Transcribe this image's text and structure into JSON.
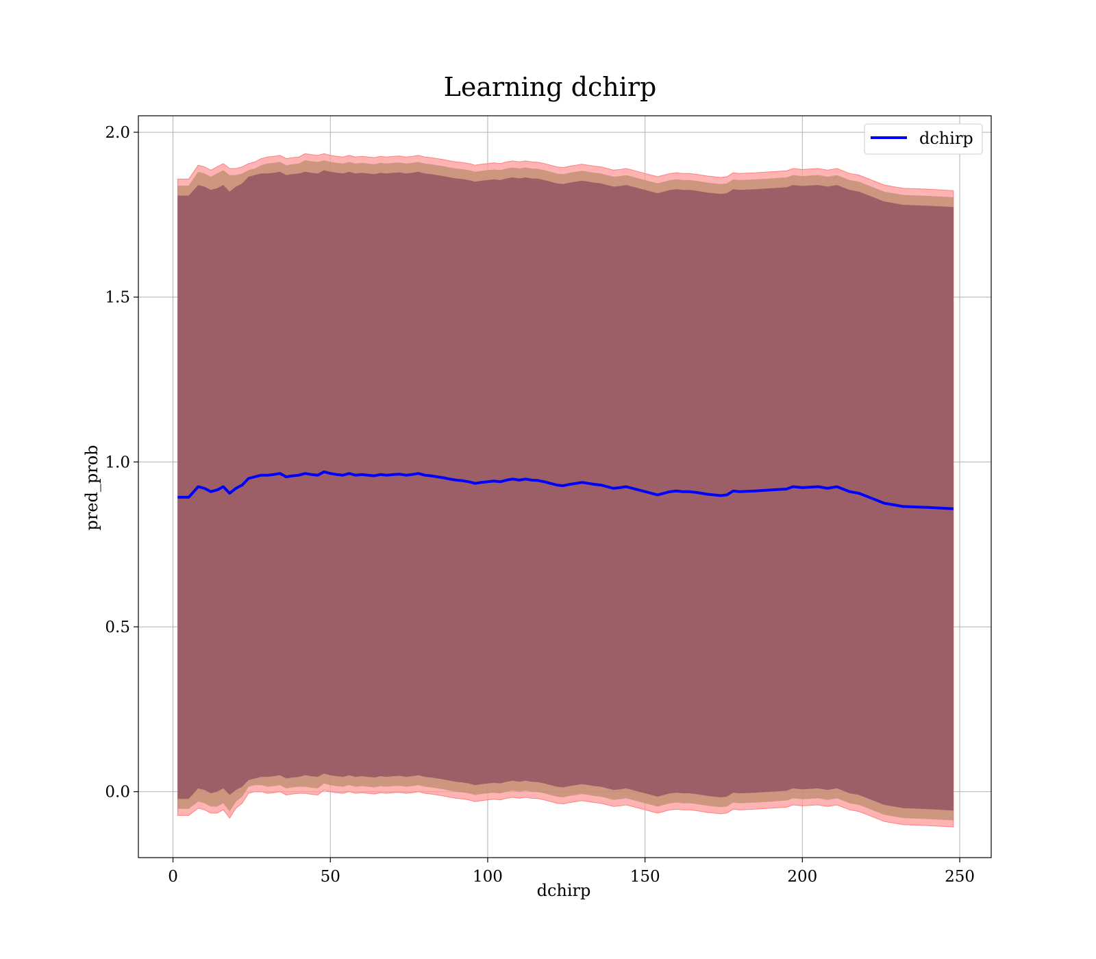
{
  "chart_data": {
    "type": "line",
    "title": "Learning dchirp",
    "xlabel": "dchirp",
    "ylabel": "pred_prob",
    "xlim": [
      -11,
      260
    ],
    "ylim": [
      -0.2,
      2.05
    ],
    "xticks": [
      0,
      50,
      100,
      150,
      200,
      250
    ],
    "yticks": [
      0.0,
      0.5,
      1.0,
      1.5,
      2.0
    ],
    "xtick_labels": [
      "0",
      "50",
      "100",
      "150",
      "200",
      "250"
    ],
    "ytick_labels": [
      "0.0",
      "0.5",
      "1.0",
      "1.5",
      "2.0"
    ],
    "grid": true,
    "legend": {
      "position": "top-right",
      "entries": [
        {
          "label": "dchirp",
          "color": "#0000ff"
        }
      ]
    },
    "colors": {
      "line": "#0000ff",
      "outer_band": "#ff9999",
      "inner_band": "#8b4a5e",
      "grid": "#b0b0b0"
    },
    "series": [
      {
        "name": "dchirp",
        "x": [
          1.5,
          5,
          8,
          10,
          12,
          14,
          16,
          18,
          20,
          22,
          24,
          26,
          28,
          30,
          32,
          34,
          36,
          38,
          40,
          42,
          44,
          46,
          48,
          50,
          52,
          54,
          56,
          58,
          60,
          62,
          64,
          66,
          68,
          70,
          72,
          74,
          76,
          78,
          80,
          82,
          84,
          86,
          88,
          90,
          92,
          94,
          96,
          98,
          100,
          102,
          104,
          106,
          108,
          110,
          112,
          114,
          116,
          118,
          120,
          122,
          124,
          126,
          128,
          130,
          132,
          134,
          136,
          138,
          140,
          142,
          144,
          146,
          148,
          150,
          152,
          154,
          156,
          158,
          160,
          162,
          164,
          166,
          168,
          170,
          172,
          174,
          176,
          178,
          180,
          185,
          190,
          195,
          197,
          200,
          205,
          208,
          211,
          215,
          218,
          222,
          226,
          232,
          240,
          248
        ],
        "y": [
          0.893,
          0.893,
          0.925,
          0.92,
          0.91,
          0.915,
          0.925,
          0.905,
          0.92,
          0.93,
          0.95,
          0.955,
          0.96,
          0.96,
          0.962,
          0.965,
          0.955,
          0.958,
          0.96,
          0.965,
          0.962,
          0.96,
          0.97,
          0.965,
          0.962,
          0.96,
          0.965,
          0.96,
          0.962,
          0.96,
          0.958,
          0.962,
          0.96,
          0.962,
          0.963,
          0.96,
          0.962,
          0.965,
          0.96,
          0.958,
          0.955,
          0.952,
          0.948,
          0.945,
          0.943,
          0.94,
          0.935,
          0.938,
          0.94,
          0.942,
          0.94,
          0.945,
          0.948,
          0.945,
          0.948,
          0.945,
          0.944,
          0.94,
          0.935,
          0.93,
          0.928,
          0.932,
          0.935,
          0.938,
          0.935,
          0.932,
          0.93,
          0.925,
          0.92,
          0.922,
          0.925,
          0.92,
          0.915,
          0.91,
          0.905,
          0.9,
          0.905,
          0.91,
          0.912,
          0.91,
          0.91,
          0.908,
          0.905,
          0.902,
          0.9,
          0.898,
          0.9,
          0.912,
          0.91,
          0.912,
          0.915,
          0.918,
          0.925,
          0.922,
          0.925,
          0.92,
          0.925,
          0.91,
          0.905,
          0.89,
          0.875,
          0.865,
          0.862,
          0.858
        ],
        "band_outer": [
          0.965,
          0.965,
          0.975,
          0.975,
          0.975,
          0.98,
          0.98,
          0.985,
          0.97,
          0.965,
          0.955,
          0.955,
          0.96,
          0.965,
          0.965,
          0.965,
          0.965,
          0.965,
          0.965,
          0.97,
          0.97,
          0.97,
          0.965,
          0.965,
          0.965,
          0.965,
          0.965,
          0.965,
          0.965,
          0.965,
          0.965,
          0.965,
          0.965,
          0.965,
          0.965,
          0.965,
          0.965,
          0.965,
          0.965,
          0.965,
          0.965,
          0.965,
          0.965,
          0.965,
          0.965,
          0.965,
          0.965,
          0.965,
          0.965,
          0.965,
          0.965,
          0.965,
          0.965,
          0.965,
          0.965,
          0.965,
          0.965,
          0.965,
          0.965,
          0.965,
          0.965,
          0.965,
          0.965,
          0.965,
          0.965,
          0.965,
          0.965,
          0.965,
          0.965,
          0.965,
          0.965,
          0.965,
          0.965,
          0.965,
          0.965,
          0.965,
          0.965,
          0.965,
          0.965,
          0.965,
          0.965,
          0.965,
          0.965,
          0.965,
          0.965,
          0.965,
          0.965,
          0.965,
          0.965,
          0.965,
          0.965,
          0.965,
          0.965,
          0.965,
          0.965,
          0.965,
          0.965,
          0.965,
          0.965,
          0.965,
          0.965,
          0.965,
          0.965,
          0.965
        ],
        "band_inner": [
          0.915,
          0.915,
          0.915,
          0.915,
          0.915,
          0.915,
          0.915,
          0.915,
          0.915,
          0.915,
          0.915,
          0.915,
          0.915,
          0.915,
          0.915,
          0.915,
          0.915,
          0.915,
          0.915,
          0.915,
          0.915,
          0.915,
          0.915,
          0.915,
          0.915,
          0.915,
          0.915,
          0.915,
          0.915,
          0.915,
          0.915,
          0.915,
          0.915,
          0.915,
          0.915,
          0.915,
          0.915,
          0.915,
          0.915,
          0.915,
          0.915,
          0.915,
          0.915,
          0.915,
          0.915,
          0.915,
          0.915,
          0.915,
          0.915,
          0.915,
          0.915,
          0.915,
          0.915,
          0.915,
          0.915,
          0.915,
          0.915,
          0.915,
          0.915,
          0.915,
          0.915,
          0.915,
          0.915,
          0.915,
          0.915,
          0.915,
          0.915,
          0.915,
          0.915,
          0.915,
          0.915,
          0.915,
          0.915,
          0.915,
          0.915,
          0.915,
          0.915,
          0.915,
          0.915,
          0.915,
          0.915,
          0.915,
          0.915,
          0.915,
          0.915,
          0.915,
          0.915,
          0.915,
          0.915,
          0.915,
          0.915,
          0.915,
          0.915,
          0.915,
          0.915,
          0.915,
          0.915,
          0.915,
          0.915,
          0.915,
          0.915,
          0.915,
          0.915,
          0.915
        ]
      }
    ]
  }
}
